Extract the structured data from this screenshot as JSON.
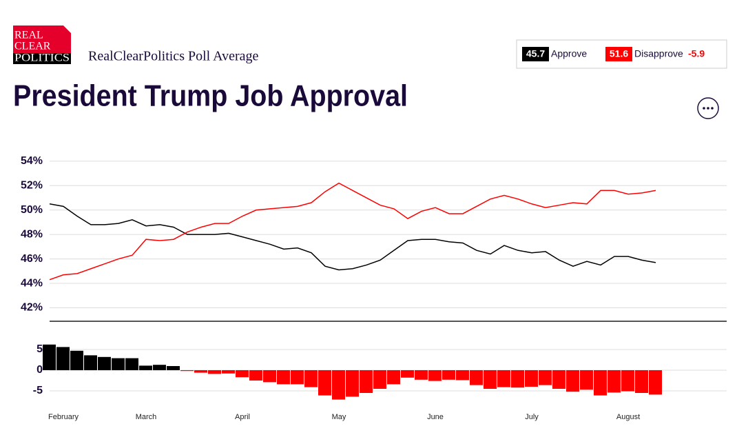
{
  "header": {
    "logo": [
      "REAL",
      "CLEAR",
      "POLITICS"
    ],
    "subtitle": "RealClearPolitics Poll Average",
    "title": "President Trump Job Approval"
  },
  "chart_data": [
    {
      "type": "line",
      "ylim": [
        40.9,
        55
      ],
      "yticks": [
        {
          "value": 42,
          "label": "42%"
        },
        {
          "value": 44,
          "label": "44%"
        },
        {
          "value": 46,
          "label": "46%"
        },
        {
          "value": 48,
          "label": "48%"
        },
        {
          "value": 50,
          "label": "50%"
        },
        {
          "value": 52,
          "label": "52%"
        },
        {
          "value": 54,
          "label": "54%"
        }
      ],
      "grid": true,
      "legend": [
        {
          "value": 45.7,
          "name": "Approve",
          "color": "#000000"
        },
        {
          "value": 51.6,
          "name": "Disapprove",
          "color": "#ff0000"
        }
      ],
      "spread": -5.9,
      "series": [
        {
          "name": "Approve",
          "color": "#000000",
          "values": [
            50.5,
            50.3,
            49.5,
            48.8,
            48.8,
            48.9,
            49.2,
            48.7,
            48.8,
            48.6,
            48.0,
            48.0,
            48.0,
            48.1,
            47.8,
            47.5,
            47.2,
            46.8,
            46.9,
            46.5,
            45.4,
            45.1,
            45.2,
            45.5,
            45.9,
            46.7,
            47.5,
            47.6,
            47.6,
            47.4,
            47.3,
            46.7,
            46.4,
            47.1,
            46.7,
            46.5,
            46.6,
            45.9,
            45.4,
            45.8,
            45.5,
            46.2,
            46.2,
            45.9,
            45.7
          ]
        },
        {
          "name": "Disapprove",
          "color": "#ff0000",
          "values": [
            44.3,
            44.7,
            44.8,
            45.2,
            45.6,
            46.0,
            46.3,
            47.6,
            47.5,
            47.6,
            48.2,
            48.6,
            48.9,
            48.9,
            49.5,
            50.0,
            50.1,
            50.2,
            50.3,
            50.6,
            51.5,
            52.2,
            51.6,
            51.0,
            50.4,
            50.1,
            49.3,
            49.9,
            50.2,
            49.7,
            49.7,
            50.3,
            50.9,
            51.2,
            50.9,
            50.5,
            50.2,
            50.4,
            50.6,
            50.5,
            51.6,
            51.6,
            51.3,
            51.4,
            51.6
          ]
        }
      ]
    },
    {
      "type": "bar",
      "categories": [
        null,
        "February",
        null,
        null,
        null,
        null,
        null,
        "March",
        null,
        null,
        null,
        null,
        null,
        null,
        "April",
        null,
        null,
        null,
        null,
        null,
        null,
        "May",
        null,
        null,
        null,
        null,
        null,
        null,
        "June",
        null,
        null,
        null,
        null,
        null,
        null,
        "July",
        null,
        null,
        null,
        null,
        null,
        null,
        "August",
        null,
        null
      ],
      "values": [
        6.2,
        5.6,
        4.7,
        3.6,
        3.2,
        2.9,
        2.9,
        1.1,
        1.3,
        1.0,
        -0.2,
        -0.6,
        -0.9,
        -0.8,
        -1.7,
        -2.5,
        -2.9,
        -3.4,
        -3.4,
        -4.1,
        -6.1,
        -7.1,
        -6.4,
        -5.5,
        -4.5,
        -3.4,
        -1.8,
        -2.3,
        -2.6,
        -2.3,
        -2.4,
        -3.6,
        -4.5,
        -4.1,
        -4.2,
        -4.0,
        -3.6,
        -4.5,
        -5.2,
        -4.7,
        -6.1,
        -5.4,
        -5.1,
        -5.5,
        -5.9
      ],
      "color_positive": "#000000",
      "color_negative": "#ff0000",
      "ylim": [
        -8,
        7
      ],
      "yticks": [
        -5,
        0,
        5
      ],
      "grid": true
    }
  ]
}
